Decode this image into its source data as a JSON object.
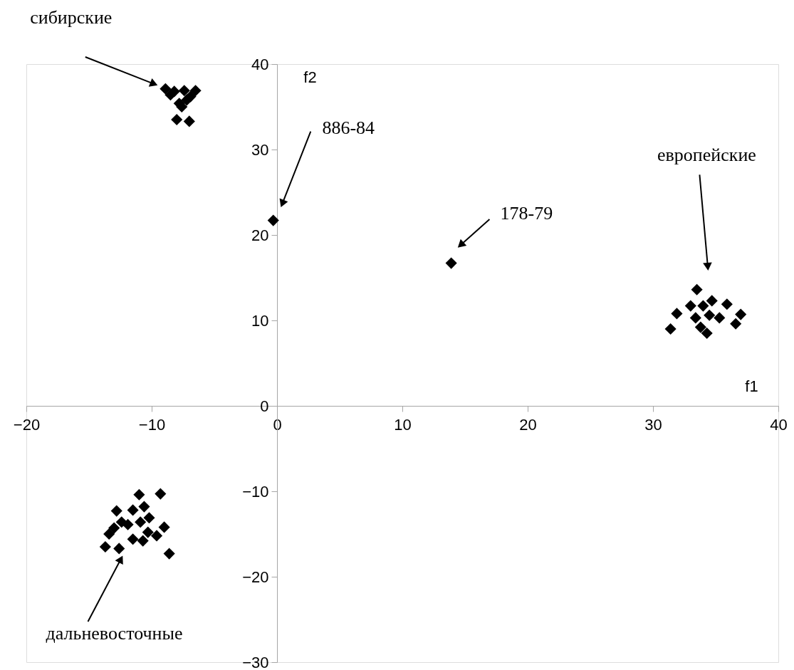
{
  "chart_data": {
    "type": "scatter",
    "xlabel": "f1",
    "ylabel": "f2",
    "xlim": [
      -20,
      40
    ],
    "ylim": [
      -30,
      40
    ],
    "xticks": [
      -20,
      -10,
      0,
      10,
      20,
      30,
      40
    ],
    "yticks": [
      -30,
      -20,
      -10,
      0,
      10,
      20,
      30,
      40
    ],
    "grid": false,
    "marker": "diamond",
    "series": [
      {
        "color": "#000000",
        "x": [
          -8.9,
          -8.2,
          -7.4,
          -6.5,
          -7.2,
          -7.8,
          -7.6,
          -8.5,
          -8.0,
          -7.0,
          -6.9,
          -0.3,
          13.9,
          33.5,
          31.9,
          31.4,
          37.0,
          36.6,
          34.0,
          34.7,
          35.9,
          33.8,
          34.3,
          35.3,
          33.4,
          34.5,
          33.0,
          -11.0,
          -9.3,
          -12.8,
          -11.5,
          -10.6,
          -13.4,
          -13.7,
          -12.6,
          -8.6,
          -9.0,
          -9.6,
          -11.9,
          -10.9,
          -10.2,
          -11.5,
          -10.7,
          -12.4,
          -13.0,
          -10.3
        ],
        "values": [
          37.1,
          36.8,
          36.9,
          36.9,
          35.8,
          35.4,
          35.0,
          36.4,
          33.5,
          33.3,
          36.2,
          21.7,
          16.7,
          13.6,
          10.8,
          9.0,
          10.7,
          9.6,
          11.7,
          12.3,
          11.9,
          9.2,
          8.5,
          10.3,
          10.3,
          10.6,
          11.7,
          -10.4,
          -10.3,
          -12.3,
          -12.2,
          -11.8,
          -15.0,
          -16.5,
          -16.7,
          -17.3,
          -14.2,
          -15.2,
          -13.9,
          -13.6,
          -13.1,
          -15.6,
          -15.8,
          -13.6,
          -14.3,
          -14.8
        ]
      }
    ],
    "annotations": [
      "сибирские",
      "886-84",
      "178-79",
      "европейские",
      "дальневосточные"
    ]
  }
}
